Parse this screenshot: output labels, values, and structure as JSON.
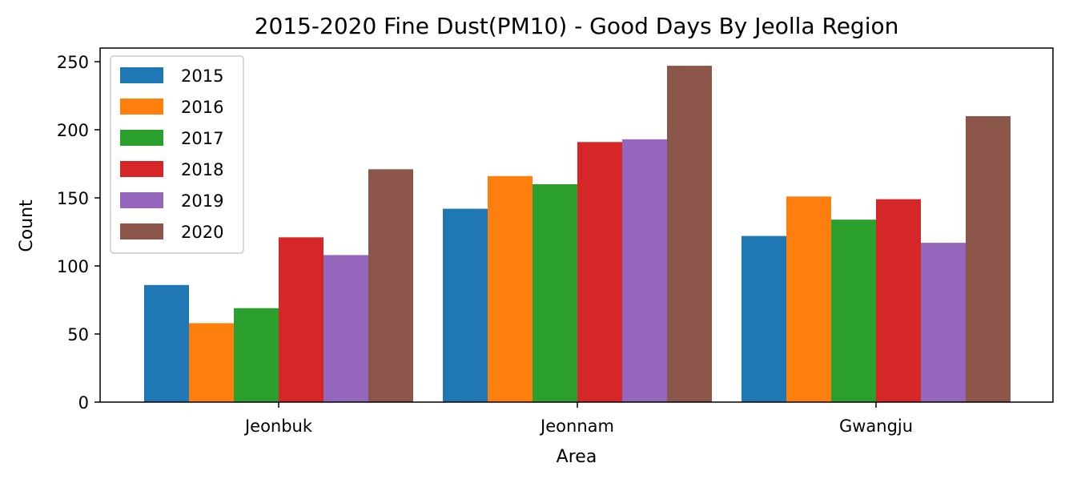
{
  "chart_data": {
    "type": "bar",
    "title": "2015-2020 Fine Dust(PM10) - Good Days By Jeolla Region",
    "xlabel": "Area",
    "ylabel": "Count",
    "categories": [
      "Jeonbuk",
      "Jeonnam",
      "Gwangju"
    ],
    "ylim": [
      0,
      260
    ],
    "yticks": [
      0,
      50,
      100,
      150,
      200,
      250
    ],
    "grid": false,
    "legend_position": "top-left",
    "series": [
      {
        "name": "2015",
        "color": "#1f77b4",
        "values": [
          86,
          142,
          122
        ]
      },
      {
        "name": "2016",
        "color": "#ff7f0e",
        "values": [
          58,
          166,
          151
        ]
      },
      {
        "name": "2017",
        "color": "#2ca02c",
        "values": [
          69,
          160,
          134
        ]
      },
      {
        "name": "2018",
        "color": "#d62728",
        "values": [
          121,
          191,
          149
        ]
      },
      {
        "name": "2019",
        "color": "#9467bd",
        "values": [
          108,
          193,
          117
        ]
      },
      {
        "name": "2020",
        "color": "#8c564b",
        "values": [
          171,
          247,
          210
        ]
      }
    ]
  }
}
